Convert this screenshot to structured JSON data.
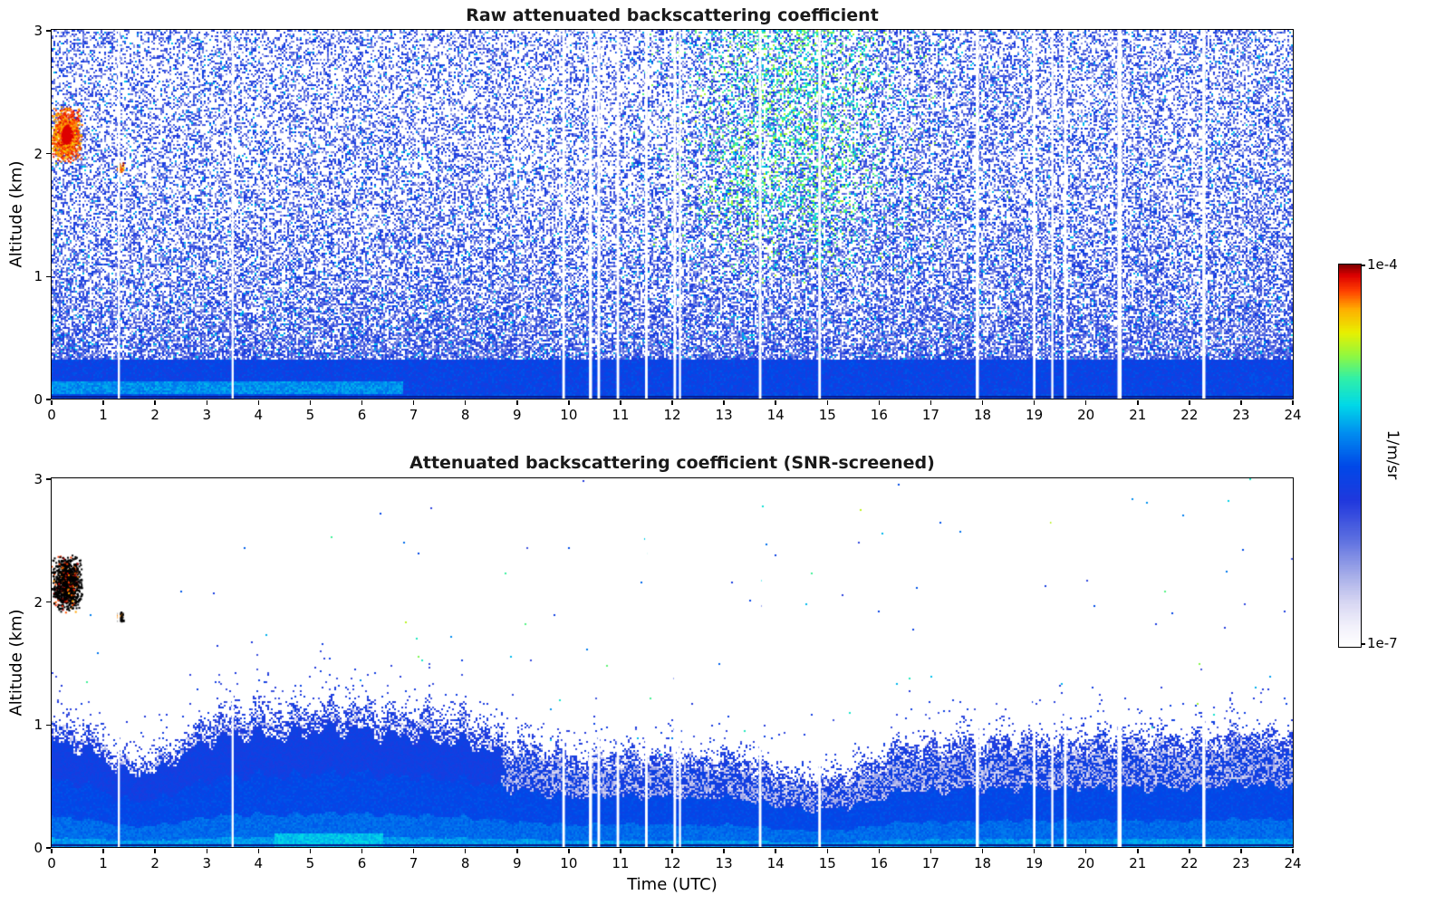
{
  "chart_data": {
    "type": "heatmap",
    "xlabel": "Time (UTC)",
    "ylabel": "Altitude (km)",
    "xlim": [
      0,
      24
    ],
    "ylim": [
      0,
      3
    ],
    "xticks": [
      0,
      1,
      2,
      3,
      4,
      5,
      6,
      7,
      8,
      9,
      10,
      11,
      12,
      13,
      14,
      15,
      16,
      17,
      18,
      19,
      20,
      21,
      22,
      23,
      24
    ],
    "yticks": [
      0,
      1,
      2,
      3
    ],
    "colorbar": {
      "unit_label": "1/m/sr",
      "top_label": "1e-4",
      "bottom_label": "1e-7",
      "scale": "log",
      "vmin": 1e-07,
      "vmax": 0.0001,
      "stops": [
        {
          "t": 0.0,
          "c": "#ffffff"
        },
        {
          "t": 0.05,
          "c": "#f2f1fb"
        },
        {
          "t": 0.11,
          "c": "#d9d8f3"
        },
        {
          "t": 0.18,
          "c": "#a9b0e9"
        },
        {
          "t": 0.28,
          "c": "#5b6ee0"
        },
        {
          "t": 0.38,
          "c": "#2038dd"
        },
        {
          "t": 0.47,
          "c": "#0048e8"
        },
        {
          "t": 0.56,
          "c": "#0090f0"
        },
        {
          "t": 0.63,
          "c": "#00d8e8"
        },
        {
          "t": 0.7,
          "c": "#30f0a8"
        },
        {
          "t": 0.76,
          "c": "#90f840"
        },
        {
          "t": 0.82,
          "c": "#e8f000"
        },
        {
          "t": 0.88,
          "c": "#ffb000"
        },
        {
          "t": 0.93,
          "c": "#ff4000"
        },
        {
          "t": 0.97,
          "c": "#dd0000"
        },
        {
          "t": 1.0,
          "c": "#7a0000"
        }
      ]
    },
    "panels": [
      {
        "title": "Raw attenuated backscattering coefficient",
        "kind": "raw",
        "noise": {
          "coverage_at_surface": 1.0,
          "coverage_at_top": 0.35,
          "scale_height_km": 0.75
        },
        "surface_layer_top_km": 0.32,
        "cyan_band": {
          "alt_km": 0.14,
          "until_utc": 6.8
        },
        "green_patch": {
          "center_utc": 14.3,
          "sigma_utc": 1.2,
          "alt_above_km": 0.9
        }
      },
      {
        "title": "Attenuated backscattering coefficient (SNR-screened)",
        "kind": "screened",
        "bl_top_km": {
          "t_utc": [
            0,
            0.5,
            1,
            1.5,
            2,
            2.5,
            3,
            3.5,
            4,
            4.5,
            5,
            5.5,
            6,
            6.5,
            7,
            7.5,
            8,
            8.5,
            9,
            9.5,
            10,
            10.5,
            11,
            11.5,
            12,
            12.5,
            13,
            13.5,
            14,
            14.5,
            15,
            15.5,
            16,
            16.5,
            17,
            17.5,
            18,
            18.5,
            19,
            19.5,
            20,
            20.5,
            21,
            21.5,
            22,
            22.5,
            23,
            23.5,
            24
          ],
          "h_km": [
            1.0,
            0.95,
            0.85,
            0.68,
            0.72,
            0.85,
            1.0,
            1.05,
            1.08,
            1.05,
            1.1,
            1.12,
            1.12,
            1.05,
            1.05,
            1.02,
            1.0,
            0.92,
            0.85,
            0.8,
            0.75,
            0.75,
            0.78,
            0.75,
            0.75,
            0.72,
            0.75,
            0.7,
            0.62,
            0.55,
            0.55,
            0.62,
            0.72,
            0.85,
            0.82,
            0.85,
            0.85,
            0.88,
            0.9,
            0.85,
            0.88,
            0.9,
            0.87,
            0.9,
            0.87,
            0.9,
            0.95,
            0.92,
            0.92
          ]
        }
      }
    ],
    "cloud_feature": {
      "time_utc": 0.28,
      "alt_km": 2.15,
      "halfwidth_utc": 0.22,
      "halfheight_km": 0.17
    },
    "small_cloud_feature": {
      "time_utc": 1.32,
      "alt_km": 1.88
    },
    "data_gap_times_utc": [
      {
        "t": 1.3,
        "w": 0.04
      },
      {
        "t": 3.5,
        "w": 0.04
      },
      {
        "t": 9.9,
        "w": 0.05
      },
      {
        "t": 10.42,
        "w": 0.06
      },
      {
        "t": 10.58,
        "w": 0.05
      },
      {
        "t": 10.95,
        "w": 0.05
      },
      {
        "t": 11.5,
        "w": 0.05
      },
      {
        "t": 12.05,
        "w": 0.05
      },
      {
        "t": 12.15,
        "w": 0.04
      },
      {
        "t": 13.7,
        "w": 0.05
      },
      {
        "t": 14.85,
        "w": 0.05
      },
      {
        "t": 17.9,
        "w": 0.06
      },
      {
        "t": 19.0,
        "w": 0.05
      },
      {
        "t": 19.35,
        "w": 0.04
      },
      {
        "t": 19.6,
        "w": 0.05
      },
      {
        "t": 20.65,
        "w": 0.08
      },
      {
        "t": 22.28,
        "w": 0.06
      }
    ]
  }
}
